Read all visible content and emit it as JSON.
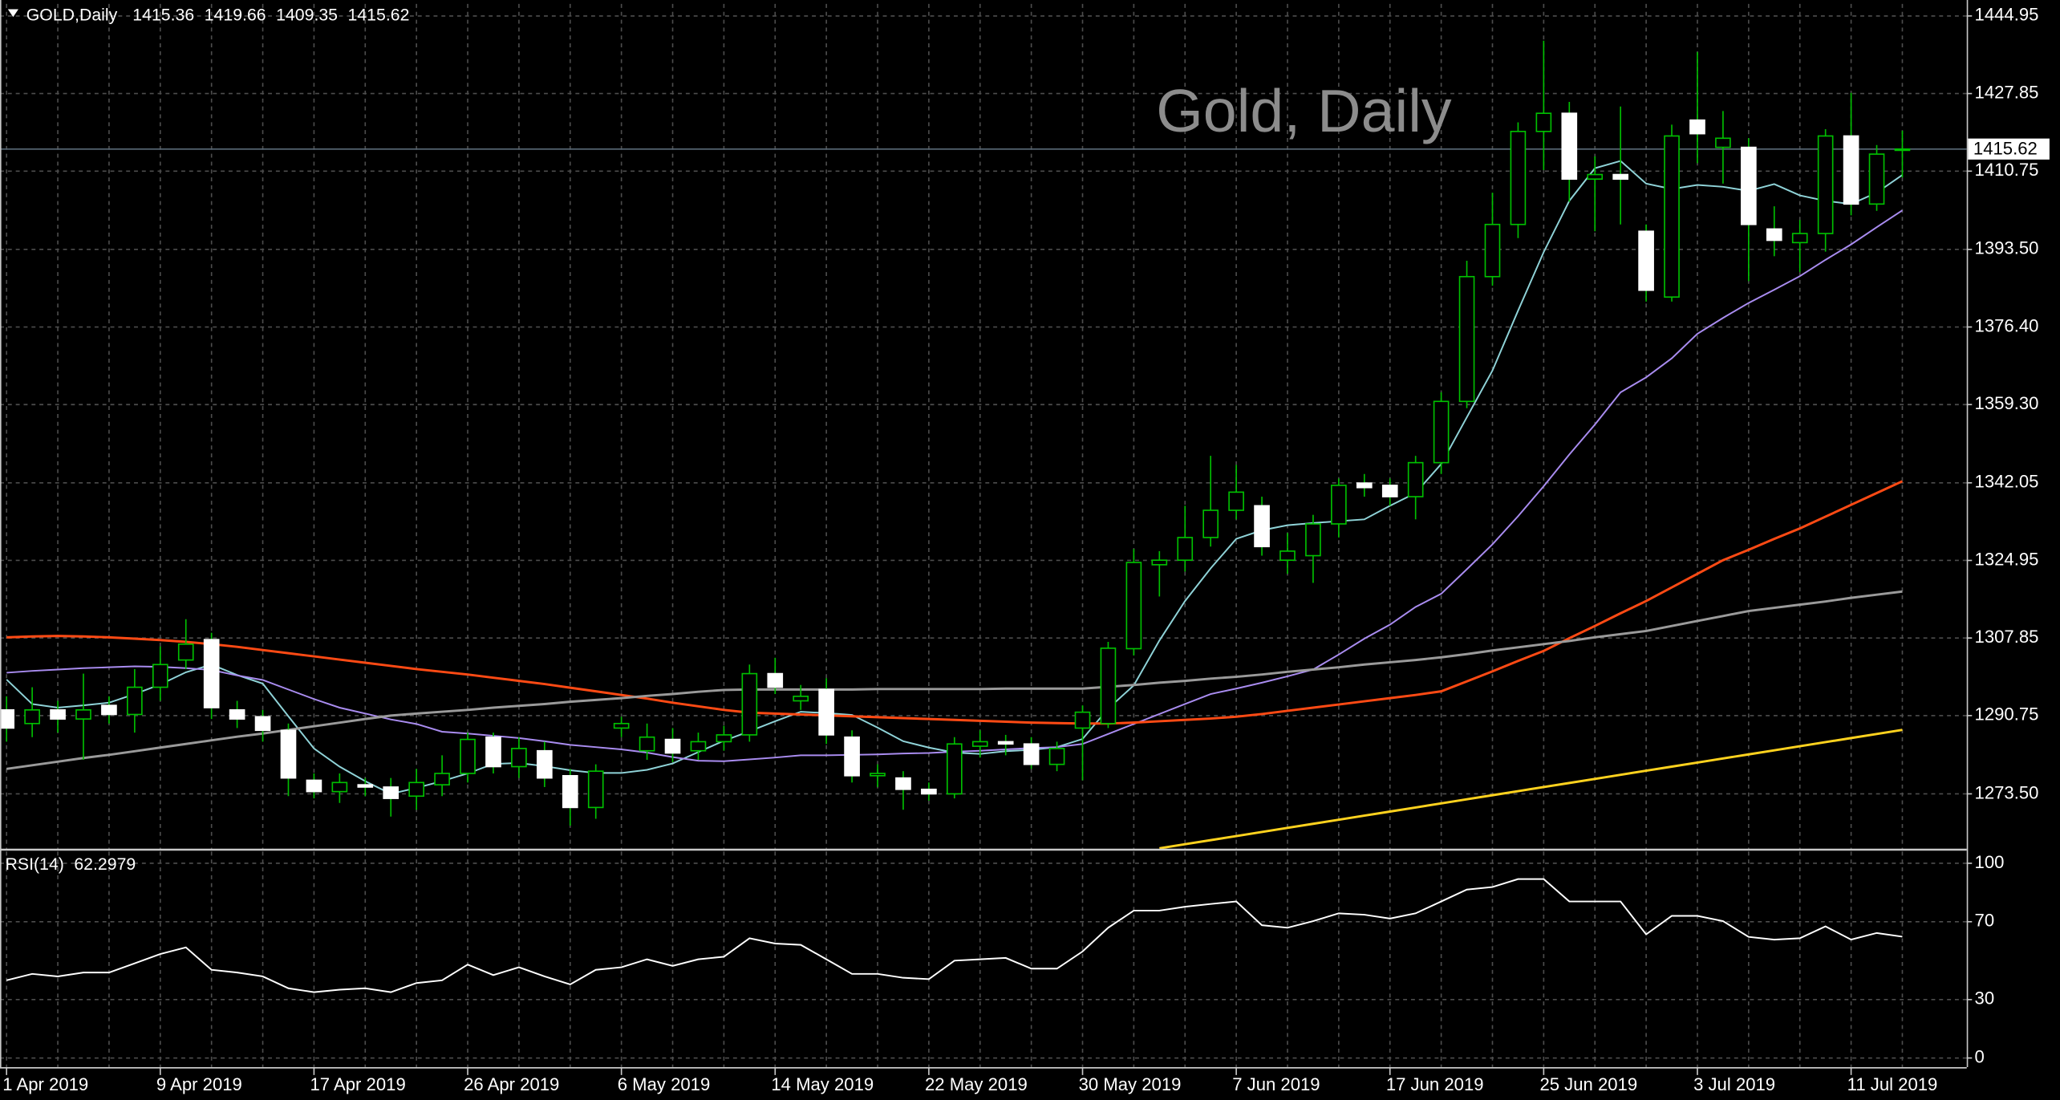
{
  "chart_data": [
    {
      "type": "candlestick",
      "title": "Gold, Daily",
      "symbol": "GOLD,Daily",
      "categories": [
        "1 Apr 2019",
        null,
        null,
        null,
        null,
        null,
        "9 Apr 2019",
        null,
        null,
        null,
        null,
        null,
        "17 Apr 2019",
        null,
        null,
        null,
        null,
        null,
        "26 Apr 2019",
        null,
        null,
        null,
        null,
        null,
        "6 May 2019",
        null,
        null,
        null,
        null,
        null,
        "14 May 2019",
        null,
        null,
        null,
        null,
        null,
        "22 May 2019",
        null,
        null,
        null,
        null,
        null,
        "30 May 2019",
        null,
        null,
        null,
        null,
        null,
        "7 Jun 2019",
        null,
        null,
        null,
        null,
        null,
        "17 Jun 2019",
        null,
        null,
        null,
        null,
        null,
        "25 Jun 2019",
        null,
        null,
        null,
        null,
        null,
        "3 Jul 2019",
        null,
        null,
        null,
        null,
        null,
        "11 Jul 2019",
        null,
        null
      ],
      "open": [
        1292,
        1289,
        1292,
        1290,
        1293,
        1291,
        1297,
        1303,
        1307.5,
        1292,
        1290.5,
        1287.5,
        1276.5,
        1274,
        1275.5,
        1275,
        1273,
        1275.5,
        1278,
        1286,
        1279.5,
        1283,
        1277.5,
        1270.5,
        1288,
        1283,
        1285.5,
        1283,
        1285,
        1286.5,
        1300,
        1294,
        1296.5,
        1286,
        1277.5,
        1277,
        1274.5,
        1273.5,
        1284,
        1285,
        1284.5,
        1280,
        1288,
        1289,
        1305.5,
        1324,
        1325,
        1330,
        1336,
        1337,
        1325,
        1326,
        1333,
        1342,
        1341.5,
        1339,
        1346.5,
        1360,
        1387.5,
        1399,
        1419.5,
        1423.5,
        1409,
        1410,
        1397.5,
        1383,
        1422,
        1416,
        1416,
        1398,
        1395,
        1397,
        1418.5,
        1403.5,
        1415.36
      ],
      "high": [
        1295,
        1297,
        1294,
        1300,
        1295,
        1301,
        1306,
        1312,
        1309,
        1294,
        1292,
        1289,
        1278,
        1278,
        1277,
        1277,
        1279,
        1282,
        1287,
        1287,
        1286,
        1285,
        1279,
        1280,
        1290.5,
        1289,
        1288,
        1287,
        1288.5,
        1302,
        1303.5,
        1297.5,
        1299,
        1287.5,
        1280,
        1278.5,
        1276,
        1286,
        1287.5,
        1286.5,
        1286,
        1285,
        1293,
        1307,
        1327.5,
        1327,
        1337,
        1348,
        1346,
        1339,
        1331,
        1335,
        1343,
        1344,
        1343,
        1348,
        1362,
        1391,
        1406,
        1421.5,
        1439.5,
        1426,
        1414,
        1425,
        1399,
        1421,
        1437,
        1424,
        1418,
        1403,
        1400,
        1420,
        1428,
        1416.5,
        1419.66
      ],
      "low": [
        1285,
        1286,
        1287,
        1281,
        1289,
        1287,
        1294,
        1301,
        1290,
        1288,
        1285,
        1273,
        1272.5,
        1271.5,
        1273,
        1268.5,
        1270,
        1273,
        1276,
        1278,
        1277,
        1275,
        1266.5,
        1268,
        1286,
        1281,
        1280.5,
        1281,
        1283,
        1285,
        1295.5,
        1292,
        1284.5,
        1276,
        1275,
        1270,
        1272,
        1272.5,
        1281.5,
        1282,
        1279,
        1278.5,
        1276.5,
        1288,
        1304,
        1317,
        1322.5,
        1328,
        1334,
        1326,
        1322,
        1320,
        1330,
        1339,
        1337,
        1334,
        1344,
        1358.5,
        1385.5,
        1396,
        1411,
        1404,
        1397.5,
        1399,
        1382,
        1382,
        1412.5,
        1408,
        1386.5,
        1392,
        1388.5,
        1393,
        1401,
        1402,
        1409.35
      ],
      "close": [
        1288,
        1292,
        1290,
        1292,
        1291,
        1297,
        1302,
        1306.5,
        1292.5,
        1290,
        1287.5,
        1277,
        1274,
        1276,
        1275,
        1272.5,
        1276,
        1278,
        1285.5,
        1279.5,
        1283.5,
        1277,
        1270.5,
        1278.5,
        1289,
        1286,
        1282.5,
        1285,
        1286.5,
        1300,
        1297,
        1295,
        1286.5,
        1277.5,
        1278,
        1274.5,
        1273.5,
        1284.5,
        1285,
        1284.5,
        1280,
        1283.5,
        1291.5,
        1305.6,
        1324.5,
        1325,
        1330,
        1336,
        1340,
        1328,
        1327,
        1333,
        1341.5,
        1341,
        1339,
        1346.5,
        1360,
        1387.5,
        1399,
        1419.5,
        1423.5,
        1409,
        1410,
        1409,
        1384.5,
        1418.5,
        1419,
        1418,
        1399,
        1395.5,
        1397,
        1418.5,
        1403.5,
        1414.5,
        1415.62
      ],
      "up_color": "#00c000",
      "down_color": "#ffffff",
      "series": [
        {
          "color": "#8fd3d8",
          "values": [
            1298.7,
            1293.3,
            1292.5,
            1293,
            1293.6,
            1295.5,
            1297.6,
            1300.3,
            1302,
            1299.7,
            1297.8,
            1290.6,
            1283.5,
            1279.5,
            1276.3,
            1273.5,
            1274.8,
            1276.3,
            1278,
            1280.1,
            1280.3,
            1279.6,
            1278.7,
            1278.1,
            1278.1,
            1278.8,
            1280.2,
            1282.7,
            1285.2,
            1287.3,
            1289.5,
            1291.6,
            1291.3,
            1290.9,
            1288.1,
            1285.1,
            1283.7,
            1282.6,
            1282.3,
            1282.9,
            1283.2,
            1283.8,
            1285.6,
            1292.3,
            1297.4,
            1307.3,
            1316,
            1323.2,
            1329.7,
            1331.6,
            1332.7,
            1333.2,
            1333.6,
            1334,
            1337,
            1339.8,
            1346.2,
            1356.5,
            1366.8,
            1380,
            1392.9,
            1404.2,
            1411.4,
            1413,
            1408,
            1406.8,
            1407.7,
            1407.3,
            1406.4,
            1407.9,
            1405.4,
            1404.2,
            1403.5,
            1406,
            1409.9
          ]
        },
        {
          "color": "#a98cf0",
          "values": [
            1300.2,
            1300.6,
            1300.9,
            1301.2,
            1301.4,
            1301.6,
            1301.5,
            1301.2,
            1300.8,
            1299.6,
            1298.6,
            1296.5,
            1294.4,
            1292.5,
            1291.2,
            1289.9,
            1288.9,
            1287.2,
            1286.8,
            1286.3,
            1285.8,
            1285.1,
            1284.3,
            1283.8,
            1283.3,
            1282.6,
            1281.6,
            1280.8,
            1280.7,
            1281.1,
            1281.5,
            1282,
            1282,
            1282.1,
            1282.2,
            1282.4,
            1282.5,
            1282.8,
            1283,
            1283.3,
            1283.6,
            1283.8,
            1284.5,
            1286.7,
            1288.9,
            1291.1,
            1293.3,
            1295.5,
            1296.7,
            1298,
            1299.4,
            1300.9,
            1304.2,
            1307.7,
            1310.8,
            1314.7,
            1317.6,
            1323,
            1328.5,
            1334.7,
            1341.3,
            1348.3,
            1354.9,
            1362,
            1365.3,
            1369.5,
            1374.9,
            1378.4,
            1381.7,
            1384.6,
            1387.6,
            1391.2,
            1394.6,
            1398.4,
            1402.1
          ]
        },
        {
          "color": "#ff4a14",
          "values": [
            1308,
            1308.2,
            1308.3,
            1308.2,
            1308,
            1307.7,
            1307.4,
            1307,
            1306.5,
            1305.9,
            1305.2,
            1304.5,
            1303.8,
            1303.1,
            1302.4,
            1301.7,
            1301,
            1300.4,
            1299.8,
            1299.1,
            1298.4,
            1297.7,
            1296.9,
            1296.1,
            1295.3,
            1294.5,
            1293.6,
            1292.8,
            1292,
            1291.4,
            1291.2,
            1291,
            1290.8,
            1290.6,
            1290.4,
            1290.2,
            1290,
            1289.8,
            1289.6,
            1289.4,
            1289.2,
            1289.1,
            1289,
            1289,
            1289.2,
            1289.5,
            1289.8,
            1290.1,
            1290.5,
            1291.1,
            1291.8,
            1292.5,
            1293.2,
            1293.9,
            1294.6,
            1295.3,
            1296.1,
            1298.3,
            1300.5,
            1302.8,
            1305,
            1307.8,
            1310.5,
            1313.3,
            1316,
            1319,
            1322,
            1325,
            1327.3,
            1329.7,
            1332,
            1334.6,
            1337.2,
            1339.8,
            1342.4
          ]
        },
        {
          "color": "#9a9a9a",
          "values": [
            1279,
            1279.8,
            1280.6,
            1281.4,
            1282.1,
            1282.9,
            1283.7,
            1284.5,
            1285.3,
            1286.1,
            1286.8,
            1287.6,
            1288.4,
            1289.2,
            1290,
            1290.75,
            1291.2,
            1291.6,
            1292,
            1292.5,
            1292.9,
            1293.3,
            1293.8,
            1294.2,
            1294.6,
            1295.1,
            1295.5,
            1296,
            1296.4,
            1296.5,
            1296.5,
            1296.5,
            1296.5,
            1296.5,
            1296.6,
            1296.6,
            1296.6,
            1296.6,
            1296.6,
            1296.7,
            1296.7,
            1296.7,
            1296.7,
            1297.1,
            1297.5,
            1298,
            1298.4,
            1298.9,
            1299.3,
            1299.8,
            1300.4,
            1300.9,
            1301.4,
            1302,
            1302.5,
            1303,
            1303.6,
            1304.3,
            1305.1,
            1305.8,
            1306.5,
            1307.2,
            1308,
            1308.7,
            1309.4,
            1310.5,
            1311.6,
            1312.7,
            1313.8,
            1314.5,
            1315.2,
            1315.9,
            1316.7,
            1317.4,
            1318.1
          ]
        },
        {
          "color": "#ffd21e",
          "values": [
            null,
            null,
            null,
            null,
            null,
            null,
            null,
            null,
            null,
            null,
            null,
            null,
            null,
            null,
            null,
            null,
            null,
            null,
            null,
            null,
            null,
            null,
            null,
            null,
            null,
            null,
            null,
            null,
            null,
            null,
            null,
            null,
            null,
            null,
            null,
            null,
            null,
            null,
            null,
            null,
            null,
            null,
            null,
            null,
            null,
            1261.5,
            1262.4,
            1263.3,
            1264.2,
            1265.1,
            1266,
            1266.9,
            1267.8,
            1268.7,
            1269.6,
            1270.5,
            1271.4,
            1272.3,
            1273.2,
            1274.1,
            1275,
            1275.9,
            1276.8,
            1277.7,
            1278.6,
            1279.5,
            1280.4,
            1281.3,
            1282.2,
            1283.1,
            1284,
            1284.9,
            1285.8,
            1286.7,
            1287.6
          ]
        }
      ],
      "ylim": [
        1261.35,
        1447.6
      ],
      "yticks": [
        {
          "value": 1273.5,
          "label": "1273.50"
        },
        1290.75,
        1307.85,
        1324.95,
        1342.05,
        {
          "value": 1359.3,
          "label": "1359.30"
        },
        {
          "value": 1376.4,
          "label": "1376.40"
        },
        {
          "value": 1393.5,
          "label": "1393.50"
        },
        1410.75,
        1427.85,
        1444.95
      ],
      "grid": true
    },
    {
      "type": "line",
      "title": "RSI(14)",
      "color": "#ffffff",
      "values": [
        39.9,
        43.2,
        41.9,
        43.9,
        43.9,
        48.6,
        53.4,
        56.8,
        45.3,
        43.9,
        41.9,
        35.8,
        33.8,
        35.1,
        35.8,
        33.8,
        38.5,
        39.9,
        48,
        42.6,
        46.6,
        41.9,
        37.8,
        45.3,
        46.6,
        50.7,
        47.3,
        50.7,
        52,
        61.5,
        58.8,
        58.1,
        50.7,
        43.2,
        43.2,
        41.2,
        40.5,
        50,
        50.7,
        51.4,
        45.9,
        45.9,
        54.7,
        66.9,
        75.7,
        75.7,
        77.7,
        79.1,
        80.4,
        68.2,
        66.9,
        70.3,
        74.3,
        73.6,
        71.6,
        74.3,
        80.4,
        86.5,
        87.8,
        91.9,
        91.9,
        80.4,
        80.4,
        80.4,
        63.5,
        73,
        73,
        70.3,
        62.2,
        60.8,
        61.5,
        67.6,
        60.8,
        64.2,
        62.2979
      ],
      "ylim": [
        -4.7,
        106
      ],
      "yticks": [
        0,
        30,
        70,
        100
      ],
      "grid": true
    }
  ]
}
